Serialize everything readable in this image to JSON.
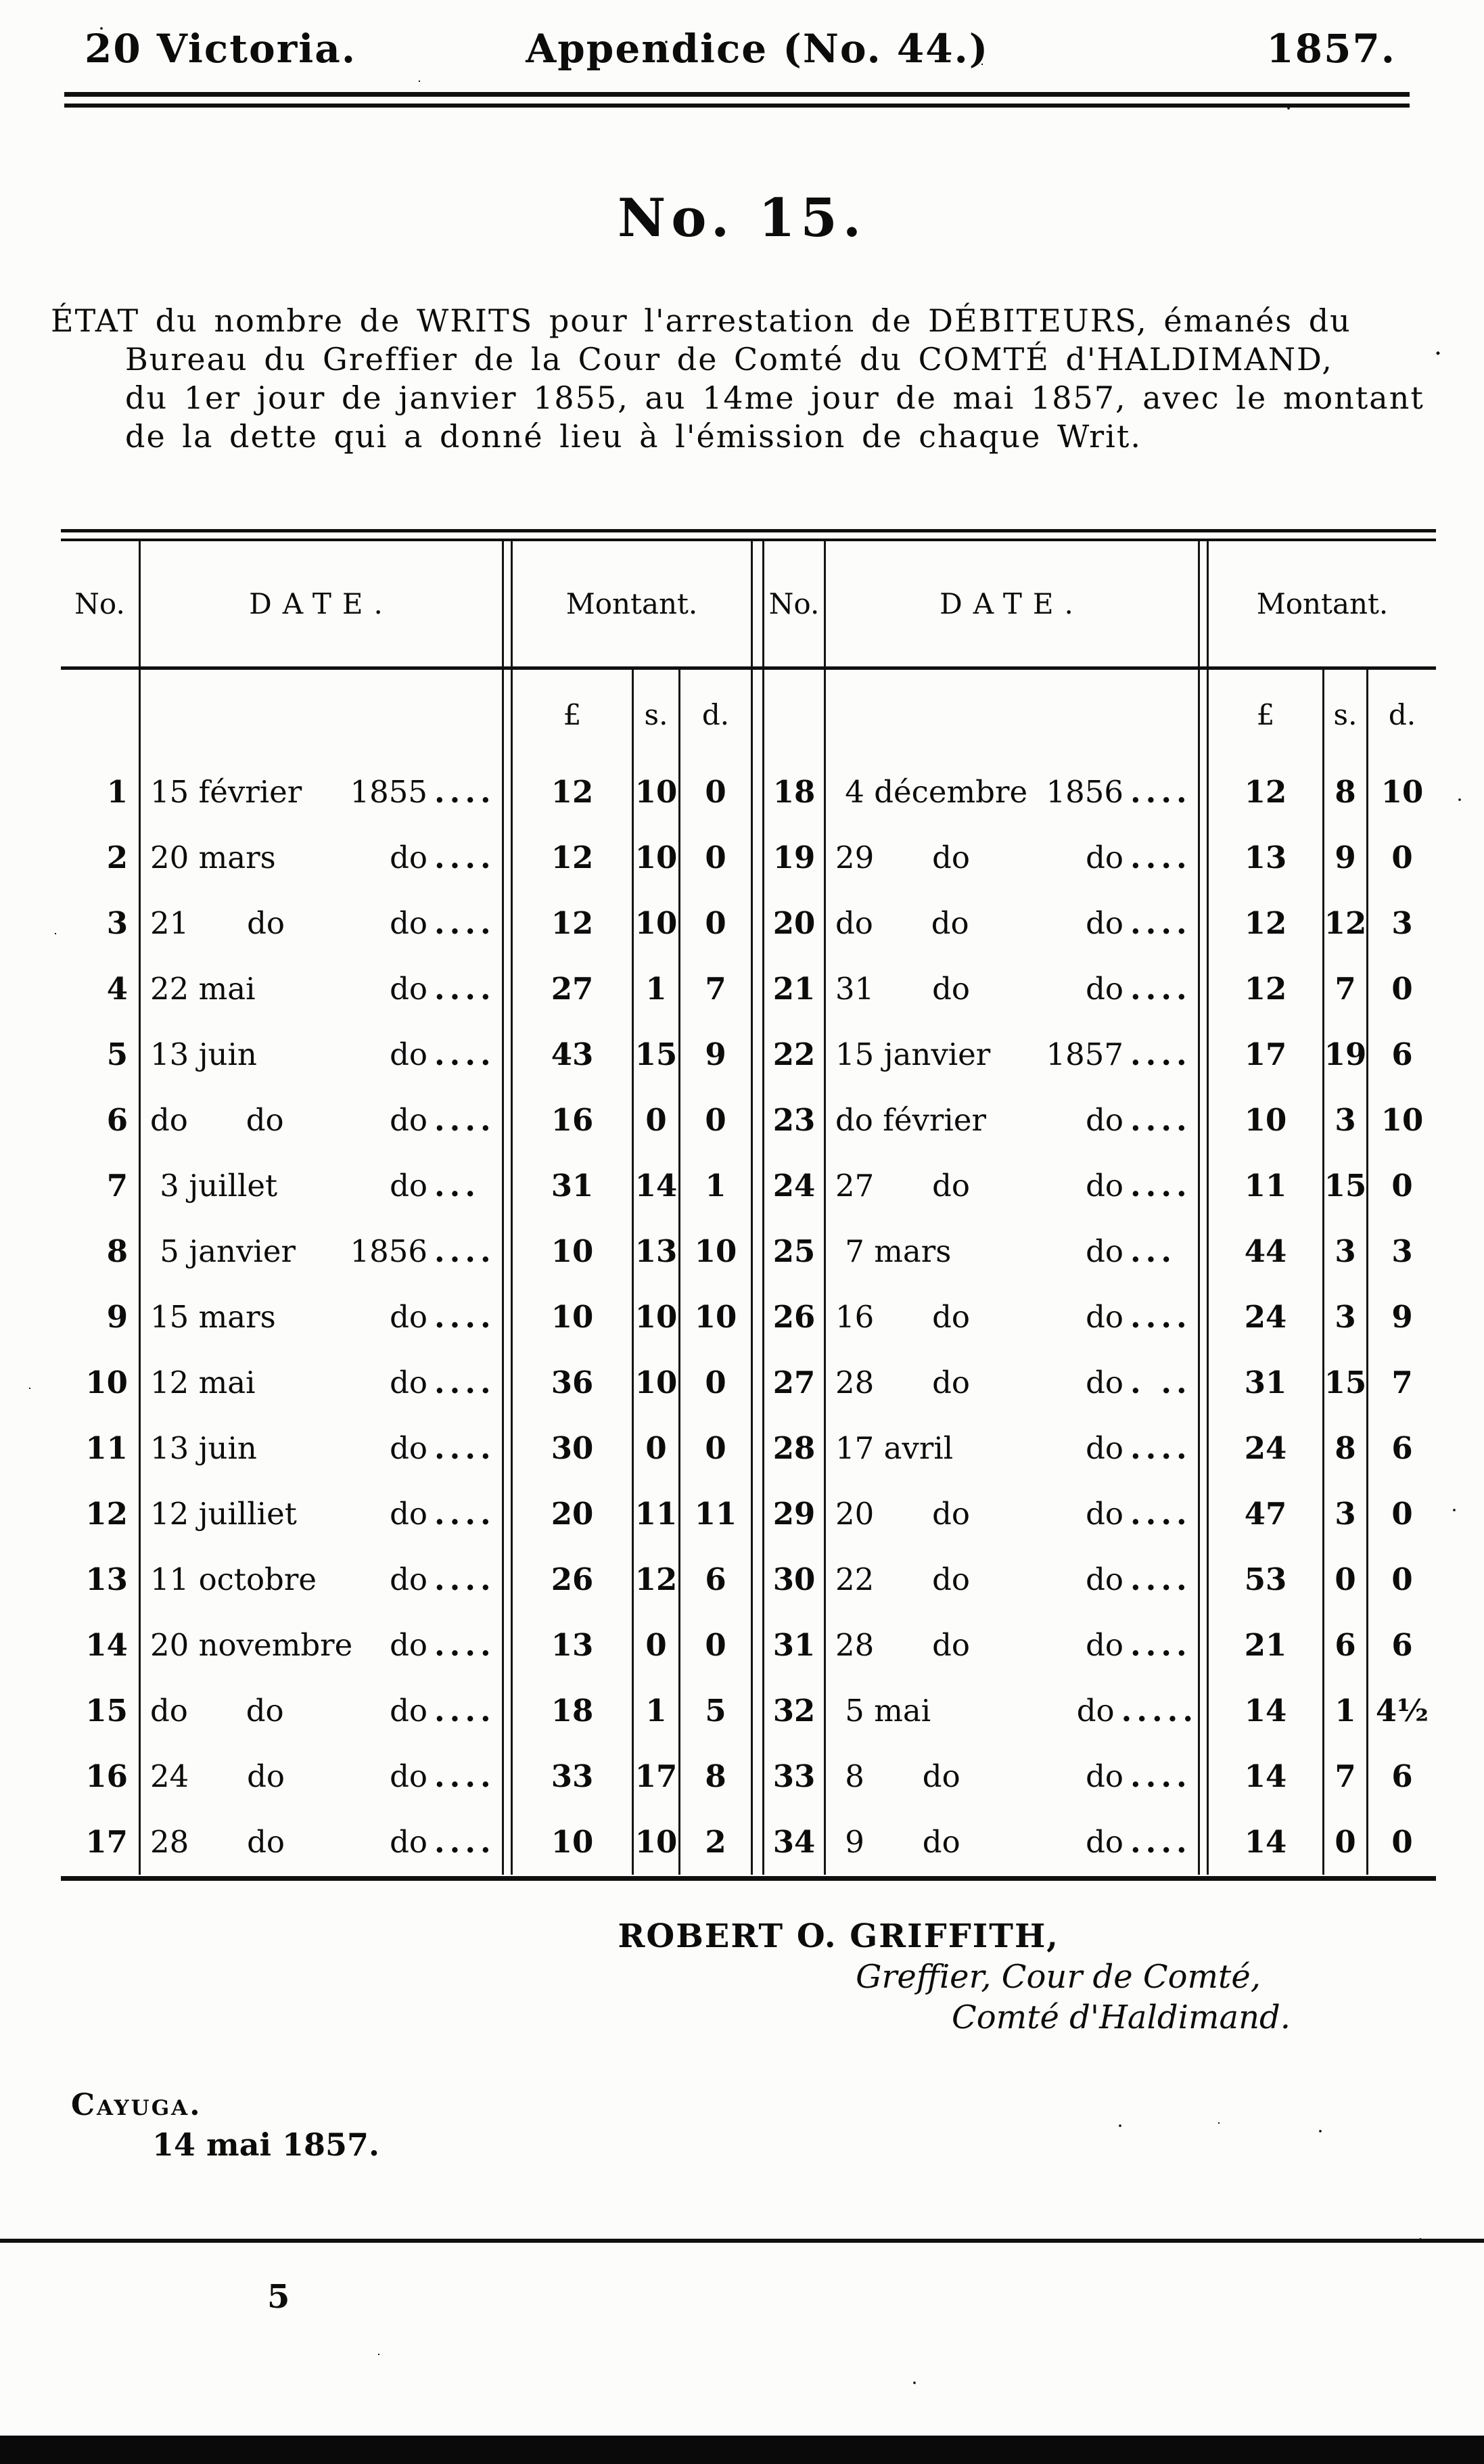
{
  "masthead": {
    "left": "20 Victoria.",
    "center": "Appendice (No. 44.)",
    "right": "1857."
  },
  "doc_number": "No. 15.",
  "intro_lines": [
    "ÉTAT du nombre de WRITS pour l'arrestation de DÉBITEURS, émanés du",
    "Bureau du Greffier de la Cour de Comté du COMTÉ d'HALDIMAND,",
    "du 1er jour de janvier 1855, au 14me jour de mai 1857, avec le montant",
    "de la dette qui a donné lieu à l'émission de chaque Writ."
  ],
  "table": {
    "col_headers": {
      "no": "No.",
      "date": "DATE.",
      "montant": "Montant."
    },
    "currency_headers": {
      "pounds": "£",
      "shillings": "s.",
      "pence": "d."
    },
    "left_rows": [
      {
        "no": "1",
        "day": "15 février",
        "year": "1855",
        "dots": "....",
        "l": "12",
        "s": "10",
        "d": "0"
      },
      {
        "no": "2",
        "day": "20 mars",
        "year": "do",
        "dots": "....",
        "l": "12",
        "s": "10",
        "d": "0"
      },
      {
        "no": "3",
        "day": "21      do",
        "year": "do",
        "dots": "....",
        "l": "12",
        "s": "10",
        "d": "0"
      },
      {
        "no": "4",
        "day": "22 mai",
        "year": "do",
        "dots": "....",
        "l": "27",
        "s": "1",
        "d": "7"
      },
      {
        "no": "5",
        "day": "13 juin",
        "year": "do",
        "dots": "....",
        "l": "43",
        "s": "15",
        "d": "9"
      },
      {
        "no": "6",
        "day": "do      do",
        "year": "do",
        "dots": "....",
        "l": "16",
        "s": "0",
        "d": "0"
      },
      {
        "no": "7",
        "day": " 3 juillet",
        "year": "do",
        "dots": "...",
        "l": "31",
        "s": "14",
        "d": "1"
      },
      {
        "no": "8",
        "day": " 5 janvier",
        "year": "1856",
        "dots": "....",
        "l": "10",
        "s": "13",
        "d": "10"
      },
      {
        "no": "9",
        "day": "15 mars",
        "year": "do",
        "dots": "....",
        "l": "10",
        "s": "10",
        "d": "10"
      },
      {
        "no": "10",
        "day": "12 mai",
        "year": "do",
        "dots": "....",
        "l": "36",
        "s": "10",
        "d": "0"
      },
      {
        "no": "11",
        "day": "13 juin",
        "year": "do",
        "dots": "....",
        "l": "30",
        "s": "0",
        "d": "0"
      },
      {
        "no": "12",
        "day": "12 juilliet",
        "year": "do",
        "dots": "....",
        "l": "20",
        "s": "11",
        "d": "11"
      },
      {
        "no": "13",
        "day": "11 octobre",
        "year": "do",
        "dots": "....",
        "l": "26",
        "s": "12",
        "d": "6"
      },
      {
        "no": "14",
        "day": "20 novembre",
        "year": "do",
        "dots": "....",
        "l": "13",
        "s": "0",
        "d": "0"
      },
      {
        "no": "15",
        "day": "do      do",
        "year": "do",
        "dots": "....",
        "l": "18",
        "s": "1",
        "d": "5"
      },
      {
        "no": "16",
        "day": "24      do",
        "year": "do",
        "dots": "....",
        "l": "33",
        "s": "17",
        "d": "8"
      },
      {
        "no": "17",
        "day": "28      do",
        "year": "do",
        "dots": "....",
        "l": "10",
        "s": "10",
        "d": "2"
      }
    ],
    "right_rows": [
      {
        "no": "18",
        "day": " 4 décembre",
        "year": "1856",
        "dots": "....",
        "l": "12",
        "s": "8",
        "d": "10"
      },
      {
        "no": "19",
        "day": "29      do",
        "year": "do",
        "dots": "....",
        "l": "13",
        "s": "9",
        "d": "0"
      },
      {
        "no": "20",
        "day": "do      do",
        "year": "do",
        "dots": "....",
        "l": "12",
        "s": "12",
        "d": "3"
      },
      {
        "no": "21",
        "day": "31      do",
        "year": "do",
        "dots": "....",
        "l": "12",
        "s": "7",
        "d": "0"
      },
      {
        "no": "22",
        "day": "15 janvier",
        "year": "1857",
        "dots": "....",
        "l": "17",
        "s": "19",
        "d": "6"
      },
      {
        "no": "23",
        "day": "do février",
        "year": "do",
        "dots": "....",
        "l": "10",
        "s": "3",
        "d": "10"
      },
      {
        "no": "24",
        "day": "27      do",
        "year": "do",
        "dots": "....",
        "l": "11",
        "s": "15",
        "d": "0"
      },
      {
        "no": "25",
        "day": " 7 mars",
        "year": "do",
        "dots": "...",
        "l": "44",
        "s": "3",
        "d": "3"
      },
      {
        "no": "26",
        "day": "16      do",
        "year": "do",
        "dots": "....",
        "l": "24",
        "s": "3",
        "d": "9"
      },
      {
        "no": "27",
        "day": "28      do",
        "year": "do",
        "dots": ". ..",
        "l": "31",
        "s": "15",
        "d": "7"
      },
      {
        "no": "28",
        "day": "17 avril",
        "year": "do",
        "dots": "....",
        "l": "24",
        "s": "8",
        "d": "6"
      },
      {
        "no": "29",
        "day": "20      do",
        "year": "do",
        "dots": "....",
        "l": "47",
        "s": "3",
        "d": "0"
      },
      {
        "no": "30",
        "day": "22      do",
        "year": "do",
        "dots": "....",
        "l": "53",
        "s": "0",
        "d": "0"
      },
      {
        "no": "31",
        "day": "28      do",
        "year": "do",
        "dots": "....",
        "l": "21",
        "s": "6",
        "d": "6"
      },
      {
        "no": "32",
        "day": " 5 mai",
        "year": "do",
        "dots": ".....",
        "l": "14",
        "s": "1",
        "d": "4½"
      },
      {
        "no": "33",
        "day": " 8      do",
        "year": "do",
        "dots": "....",
        "l": "14",
        "s": "7",
        "d": "6"
      },
      {
        "no": "34",
        "day": " 9      do",
        "year": "do",
        "dots": "....",
        "l": "14",
        "s": "0",
        "d": "0"
      }
    ]
  },
  "signature": {
    "name": "ROBERT O. GRIFFITH,",
    "title1": "Greffier, Cour de Comté,",
    "title2": "Comté d'Haldimand."
  },
  "place": "Cayuga.",
  "date_line": "14 mai 1857.",
  "page_number": "5",
  "ink_color": "#0c0c0c",
  "paper_color": "#fcfcfa"
}
